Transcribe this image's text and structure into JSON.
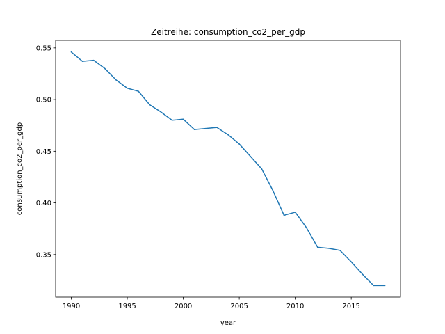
{
  "chart_data": {
    "type": "line",
    "title": "Zeitreihe: consumption_co2_per_gdp",
    "xlabel": "year",
    "ylabel": "consumption_co2_per_gdp",
    "xlim": [
      1988.6,
      2019.4
    ],
    "ylim": [
      0.3088,
      0.5573
    ],
    "xticks": [
      1990,
      1995,
      2000,
      2005,
      2010,
      2015
    ],
    "xtick_labels": [
      "1990",
      "1995",
      "2000",
      "2005",
      "2010",
      "2015"
    ],
    "yticks": [
      0.35,
      0.4,
      0.45,
      0.5,
      0.55
    ],
    "ytick_labels": [
      "0.35",
      "0.40",
      "0.45",
      "0.50",
      "0.55"
    ],
    "grid": false,
    "series": [
      {
        "color": "#1f77b4",
        "x": [
          1990,
          1991,
          1992,
          1993,
          1994,
          1995,
          1996,
          1997,
          1998,
          1999,
          2000,
          2001,
          2002,
          2003,
          2004,
          2005,
          2006,
          2007,
          2008,
          2009,
          2010,
          2011,
          2012,
          2013,
          2014,
          2015,
          2016,
          2017,
          2018
        ],
        "y": [
          0.546,
          0.537,
          0.538,
          0.53,
          0.519,
          0.511,
          0.508,
          0.495,
          0.488,
          0.48,
          0.481,
          0.471,
          0.472,
          0.473,
          0.466,
          0.457,
          0.445,
          0.433,
          0.412,
          0.388,
          0.391,
          0.376,
          0.357,
          0.356,
          0.354,
          0.343,
          0.331,
          0.32,
          0.32
        ]
      }
    ]
  }
}
